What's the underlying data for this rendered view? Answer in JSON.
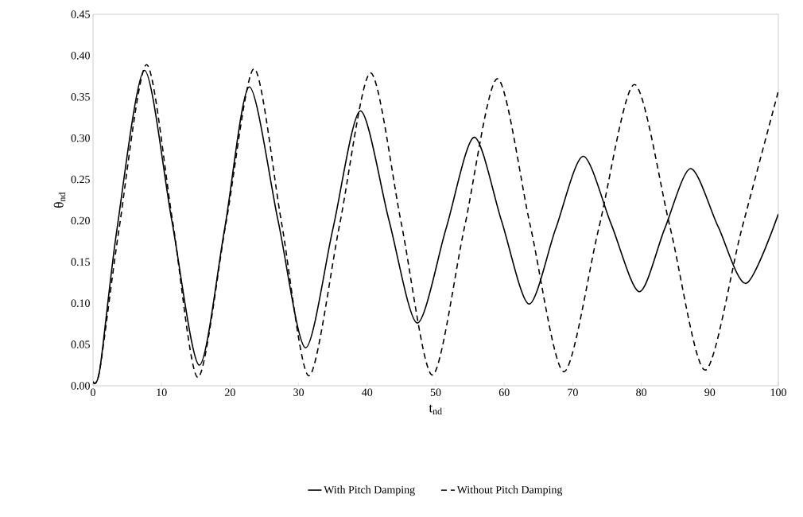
{
  "chart_data": {
    "type": "line",
    "xlabel": "t$_{nd}$",
    "ylabel": "θ$_{nd}$",
    "xlim": [
      0,
      100
    ],
    "xticks": [
      0,
      10,
      20,
      30,
      40,
      50,
      60,
      70,
      80,
      90,
      100
    ],
    "ylim": [
      0,
      0.45
    ],
    "yticks": [
      {
        "value": 0,
        "label": "0.00"
      },
      0.05,
      {
        "value": 0.1,
        "label": "0.10"
      },
      0.15,
      {
        "value": 0.2,
        "label": "0.20"
      },
      0.25,
      {
        "value": 0.3,
        "label": "0.30"
      },
      0.35,
      {
        "value": 0.4,
        "label": "0.40"
      },
      0.45
    ],
    "legend": "bottom",
    "grid": false,
    "marker": "none",
    "series": [
      {
        "name": "With Pitch Damping",
        "color": "#000000",
        "line_style": "solid",
        "x": [
          0,
          1,
          3.5,
          7.5,
          11.5,
          15.5,
          19.2,
          22.8,
          27,
          31,
          35,
          39,
          43.2,
          47.3,
          51.5,
          55.6,
          59.6,
          63.6,
          67.5,
          71.5,
          75.6,
          79.7,
          83.4,
          87.2,
          91.2,
          95.3,
          100
        ],
        "values": [
          0.005,
          0.02,
          0.19,
          0.382,
          0.2,
          0.025,
          0.19,
          0.362,
          0.2,
          0.046,
          0.19,
          0.333,
          0.2,
          0.076,
          0.19,
          0.301,
          0.2,
          0.099,
          0.19,
          0.278,
          0.196,
          0.114,
          0.19,
          0.263,
          0.193,
          0.124,
          0.208
        ]
      },
      {
        "name": "Without Pitch Damping",
        "color": "#000000",
        "line_style": "dashed",
        "x": [
          0,
          1,
          3.8,
          7.8,
          11.6,
          15.3,
          19.4,
          23.5,
          27.5,
          31.5,
          36,
          40.5,
          45,
          49.5,
          54.2,
          59,
          63.8,
          68.7,
          73.8,
          79,
          84.2,
          89.3,
          94.6,
          100
        ],
        "values": [
          0.005,
          0.02,
          0.19,
          0.389,
          0.2,
          0.01,
          0.197,
          0.384,
          0.198,
          0.012,
          0.196,
          0.379,
          0.196,
          0.013,
          0.192,
          0.372,
          0.194,
          0.017,
          0.191,
          0.365,
          0.192,
          0.019,
          0.188,
          0.357
        ]
      }
    ]
  }
}
